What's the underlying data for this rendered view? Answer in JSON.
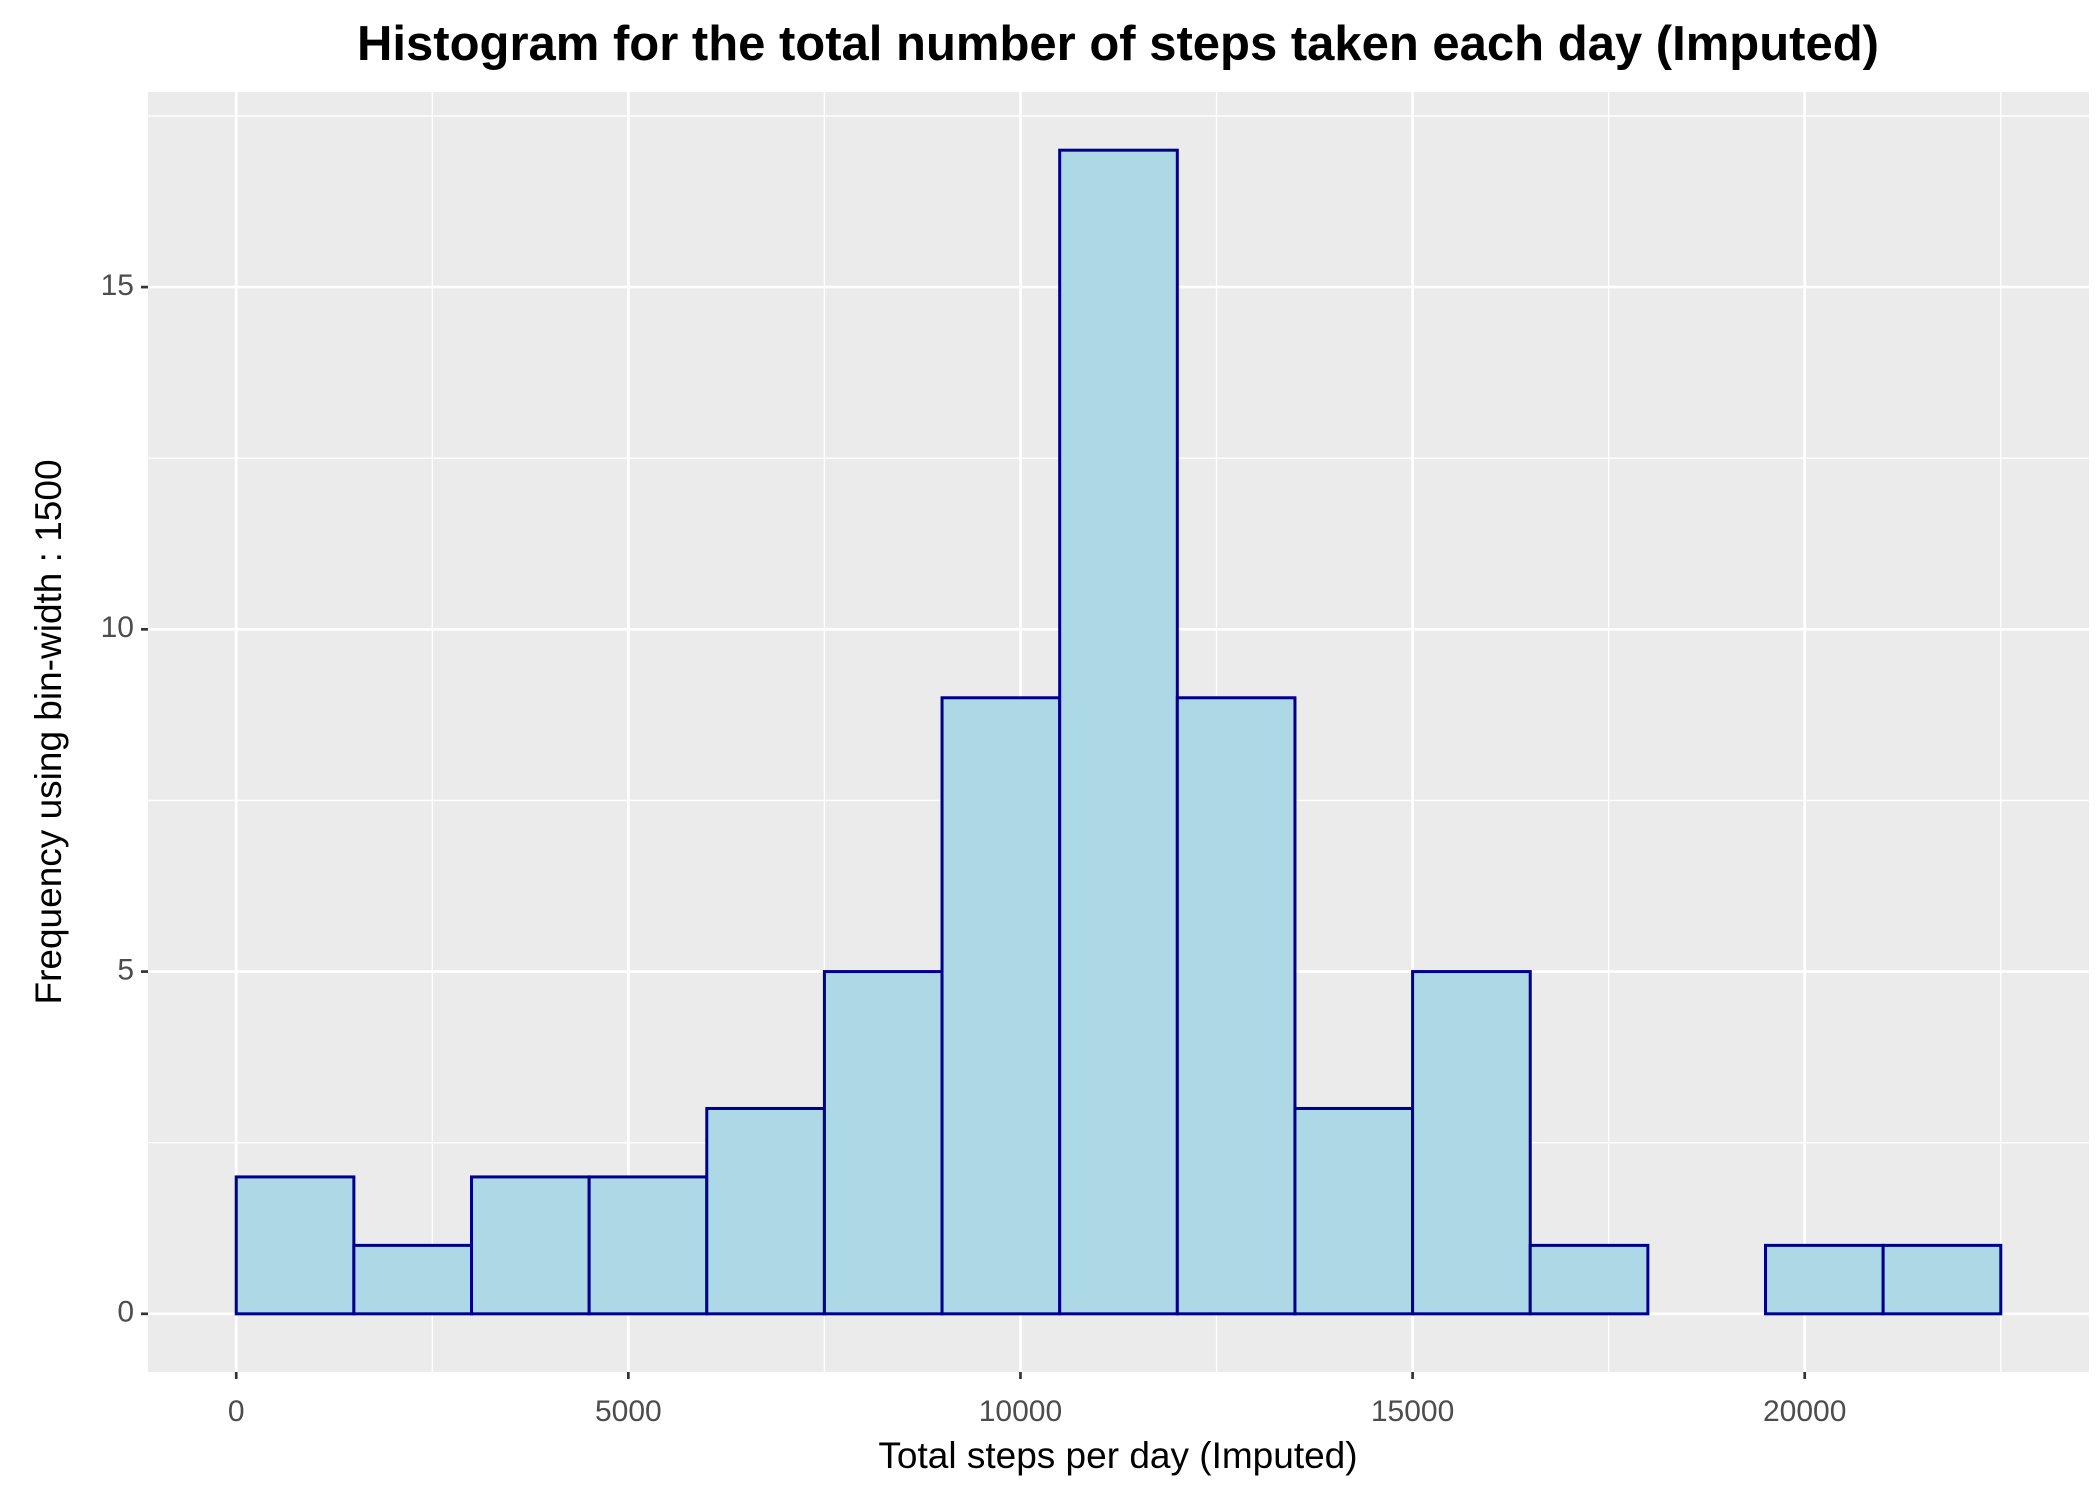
{
  "chart_data": {
    "type": "histogram",
    "title": "Histogram for the total number of steps taken each day (Imputed)",
    "xlabel": "Total steps per day (Imputed)",
    "ylabel": "Frequency using bin-width : 1500",
    "bins": [
      0,
      1500,
      3000,
      4500,
      6000,
      7500,
      9000,
      10500,
      12000,
      13500,
      15000,
      16500,
      18000,
      19500,
      21000,
      22500
    ],
    "counts": [
      2,
      1,
      2,
      2,
      3,
      5,
      9,
      17,
      9,
      3,
      5,
      1,
      0,
      1,
      1
    ],
    "color": "#add8e6",
    "edgecolor": "#00008b",
    "xlim": [
      -1125,
      23625
    ],
    "ylim": [
      -0.85,
      17.85
    ],
    "xticks": [
      0,
      5000,
      10000,
      15000,
      20000
    ],
    "yticks": [
      0,
      5,
      10,
      15
    ],
    "grid": true
  }
}
